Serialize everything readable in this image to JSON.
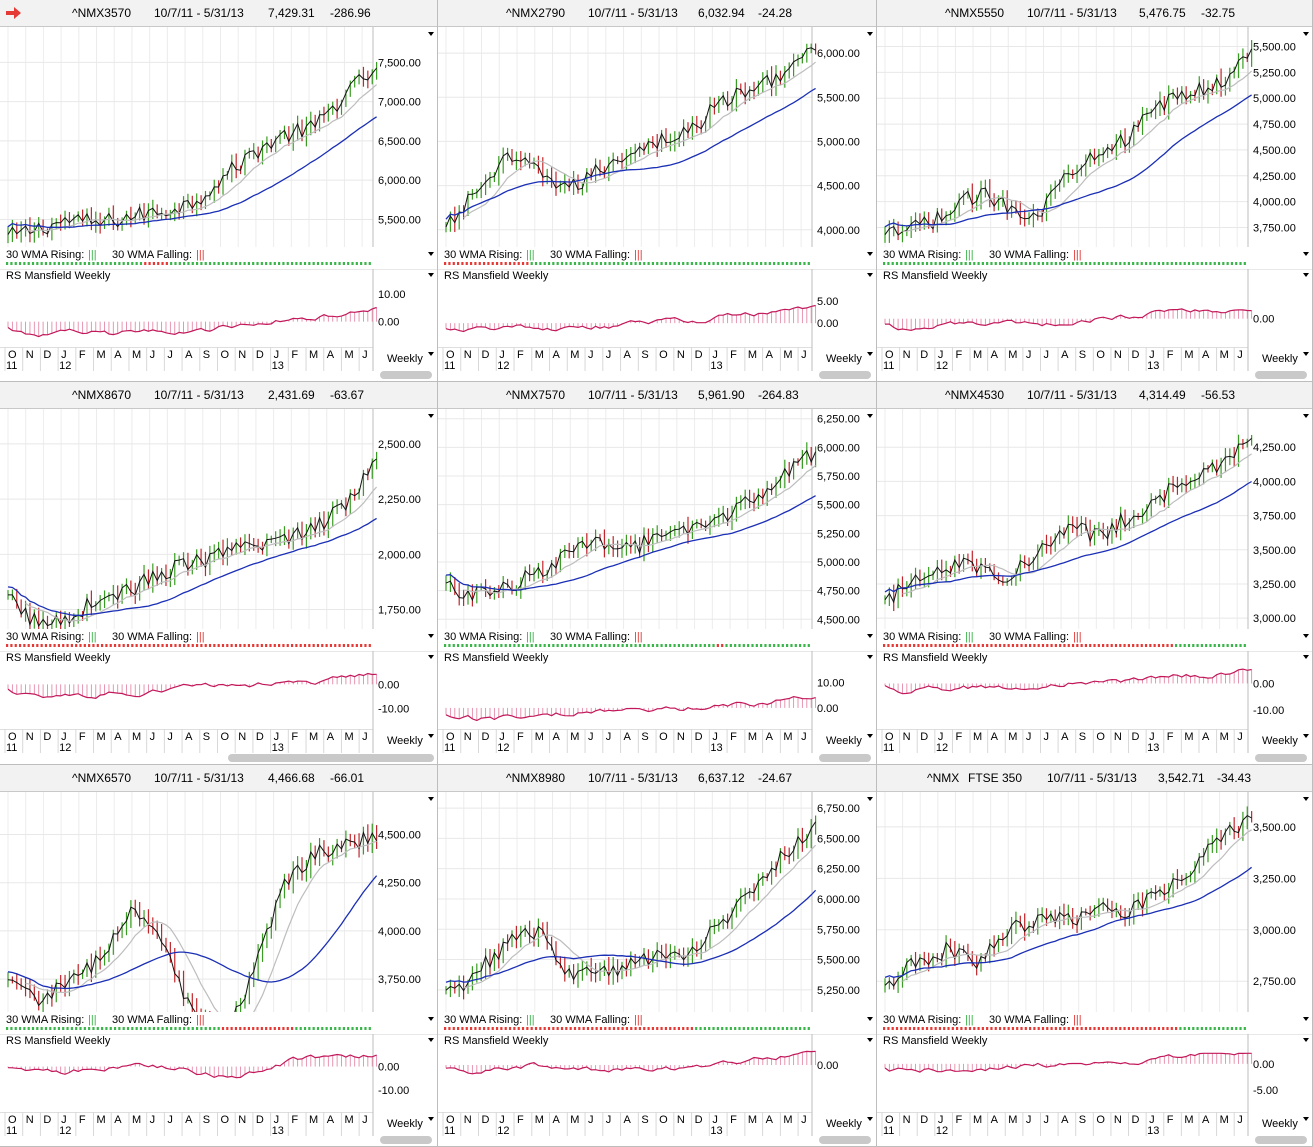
{
  "colors": {
    "up": "#3a9d23",
    "down": "#c0262b",
    "line_black": "#111111",
    "ma_gray": "#bdbdbd",
    "ma_blue": "#1a2fb5",
    "rs": "#c2185b",
    "rising": "#3ab54a",
    "falling": "#e53935",
    "arrow": "#e53935"
  },
  "labels": {
    "wma_rising": "30 WMA Rising:",
    "wma_falling": "30 WMA Falling:",
    "rs": "RS Mansfield Weekly",
    "weekly": "Weekly",
    "rising_mark": "|||",
    "falling_mark": "|||"
  },
  "months": [
    "O",
    "N",
    "D",
    "J",
    "F",
    "M",
    "A",
    "M",
    "J",
    "J",
    "A",
    "S",
    "O",
    "N",
    "D",
    "J",
    "F",
    "M",
    "A",
    "M",
    "J"
  ],
  "years": [
    "11",
    "12",
    "13"
  ],
  "icons": {
    "alert": "red-arrow-icon"
  },
  "panels": [
    {
      "symbol": "^NMX3570",
      "period": "10/7/11 - 5/31/13",
      "last": "7,429.31",
      "change": "-286.96",
      "price_ticks": [
        "7,500.00",
        "7,000.00",
        "6,500.00",
        "6,000.00",
        "5,500.00"
      ],
      "price_range": [
        5200,
        7900
      ],
      "rs_ticks": [
        "10.00",
        "0.00"
      ],
      "rs_range": [
        -7,
        14
      ],
      "start": 5280,
      "end": 7429,
      "wma": [
        1,
        1,
        1,
        1,
        1,
        1,
        1,
        1,
        1,
        1,
        1,
        1,
        1,
        1,
        1,
        1,
        1,
        1,
        1,
        1,
        1,
        1,
        1,
        1,
        1,
        1,
        1,
        1,
        1,
        1,
        1,
        1,
        0,
        0,
        0,
        0,
        0,
        0,
        1,
        1,
        1,
        1,
        1,
        1,
        1,
        1,
        1,
        1,
        1,
        1,
        1,
        1,
        1,
        1,
        1,
        1,
        1,
        1,
        1,
        1,
        1,
        1,
        1,
        1,
        1,
        1,
        1,
        1,
        1,
        1,
        1,
        1,
        1,
        1,
        1,
        1,
        1,
        1,
        1,
        1,
        1,
        1,
        1,
        1,
        1
      ]
    },
    {
      "symbol": "^NMX2790",
      "period": "10/7/11 - 5/31/13",
      "last": "6,032.94",
      "change": "-24.28",
      "price_ticks": [
        "6,000.00",
        "5,500.00",
        "5,000.00",
        "4,500.00",
        "4,000.00"
      ],
      "price_range": [
        3850,
        6250
      ],
      "rs_ticks": [
        "5.00",
        "0.00"
      ],
      "rs_range": [
        -4,
        9
      ],
      "start": 4000,
      "end": 6033,
      "wma": [
        0,
        0,
        0,
        0,
        0,
        0,
        0,
        0,
        0,
        0,
        0,
        0,
        0,
        0,
        0,
        0,
        0,
        0,
        0,
        0,
        1,
        1,
        1,
        1,
        1,
        1,
        1,
        1,
        1,
        1,
        1,
        1,
        1,
        1,
        1,
        1,
        1,
        1,
        1,
        1,
        1,
        1,
        1,
        1,
        1,
        1,
        1,
        1,
        1,
        1,
        1,
        1,
        1,
        1,
        1,
        1,
        1,
        1,
        1,
        1,
        1,
        1,
        1,
        1,
        1,
        1,
        1,
        1,
        1,
        1,
        1,
        1,
        1,
        1,
        1,
        1,
        1,
        1,
        1,
        1,
        1,
        1,
        1,
        1,
        1
      ]
    },
    {
      "symbol": "^NMX5550",
      "period": "10/7/11 - 5/31/13",
      "last": "5,476.75",
      "change": "-32.75",
      "price_ticks": [
        "5,500.00",
        "5,250.00",
        "5,000.00",
        "4,750.00",
        "4,500.00",
        "4,250.00",
        "4,000.00",
        "3,750.00"
      ],
      "price_range": [
        3600,
        5650
      ],
      "rs_ticks": [
        "0.00"
      ],
      "rs_range": [
        -5,
        8
      ],
      "start": 3650,
      "end": 5477,
      "wma": [
        1,
        1,
        1,
        1,
        1,
        1,
        1,
        1,
        1,
        1,
        1,
        1,
        1,
        1,
        1,
        1,
        1,
        1,
        1,
        1,
        1,
        1,
        1,
        1,
        1,
        1,
        1,
        1,
        1,
        1,
        1,
        1,
        1,
        1,
        1,
        1,
        1,
        1,
        1,
        1,
        1,
        1,
        1,
        1,
        1,
        1,
        1,
        1,
        1,
        1,
        1,
        1,
        1,
        1,
        1,
        1,
        1,
        1,
        1,
        1,
        1,
        1,
        1,
        1,
        1,
        1,
        1,
        1,
        1,
        1,
        1,
        1,
        1,
        1,
        1,
        1,
        1,
        1,
        1,
        1,
        1,
        1,
        1,
        1,
        1
      ]
    },
    {
      "symbol": "^NMX8670",
      "period": "10/7/11 - 5/31/13",
      "last": "2,431.69",
      "change": "-63.67",
      "price_ticks": [
        "2,500.00",
        "2,250.00",
        "2,000.00",
        "1,750.00"
      ],
      "price_range": [
        1680,
        2640
      ],
      "rs_ticks": [
        "0.00",
        "-10.00"
      ],
      "rs_range": [
        -16,
        8
      ],
      "start": 1800,
      "end": 2432,
      "wma": [
        0,
        0,
        0,
        0,
        0,
        0,
        0,
        0,
        0,
        0,
        0,
        0,
        0,
        0,
        0,
        0,
        0,
        0,
        0,
        0,
        0,
        0,
        0,
        0,
        0,
        0,
        0,
        0,
        0,
        0,
        0,
        0,
        0,
        0,
        0,
        0,
        0,
        0,
        0,
        0,
        0,
        0,
        0,
        0,
        0,
        0,
        0,
        0,
        0,
        0,
        0,
        0,
        0,
        0,
        0,
        0,
        0,
        0,
        0,
        0,
        0,
        0,
        0,
        0,
        0,
        0,
        0,
        0,
        0,
        0,
        0,
        0,
        0,
        0,
        0,
        0,
        0,
        0,
        0,
        0,
        0,
        0,
        0,
        0,
        0
      ]
    },
    {
      "symbol": "^NMX7570",
      "period": "10/7/11 - 5/31/13",
      "last": "5,961.90",
      "change": "-264.83",
      "price_ticks": [
        "6,250.00",
        "6,000.00",
        "5,750.00",
        "5,500.00",
        "5,250.00",
        "5,000.00",
        "4,750.00",
        "4,500.00"
      ],
      "price_range": [
        4450,
        6300
      ],
      "rs_ticks": [
        "10.00",
        "0.00"
      ],
      "rs_range": [
        -6,
        17
      ],
      "start": 4780,
      "end": 5962,
      "wma": [
        1,
        1,
        1,
        1,
        1,
        1,
        1,
        1,
        1,
        1,
        1,
        1,
        1,
        1,
        1,
        1,
        1,
        1,
        1,
        1,
        1,
        1,
        1,
        1,
        1,
        1,
        1,
        1,
        1,
        1,
        1,
        1,
        1,
        1,
        1,
        1,
        1,
        1,
        1,
        1,
        1,
        1,
        1,
        1,
        1,
        1,
        1,
        1,
        1,
        1,
        1,
        1,
        1,
        1,
        1,
        1,
        1,
        1,
        1,
        1,
        1,
        1,
        1,
        0,
        0,
        1,
        1,
        1,
        1,
        1,
        1,
        1,
        1,
        1,
        1,
        1,
        1,
        1,
        1,
        1,
        1,
        1,
        1,
        1,
        1
      ]
    },
    {
      "symbol": "^NMX4530",
      "period": "10/7/11 - 5/31/13",
      "last": "4,314.49",
      "change": "-56.53",
      "price_ticks": [
        "4,250.00",
        "4,000.00",
        "3,750.00",
        "3,500.00",
        "3,250.00",
        "3,000.00"
      ],
      "price_range": [
        2950,
        4500
      ],
      "rs_ticks": [
        "0.00",
        "-10.00"
      ],
      "rs_range": [
        -15,
        7
      ],
      "start": 3100,
      "end": 4314,
      "wma": [
        0,
        0,
        0,
        0,
        0,
        0,
        0,
        0,
        0,
        0,
        0,
        0,
        0,
        0,
        0,
        0,
        0,
        0,
        0,
        0,
        0,
        0,
        0,
        0,
        0,
        0,
        0,
        0,
        0,
        0,
        0,
        0,
        0,
        0,
        0,
        0,
        0,
        0,
        0,
        0,
        0,
        0,
        0,
        0,
        0,
        0,
        0,
        0,
        0,
        0,
        0,
        0,
        0,
        0,
        0,
        0,
        0,
        0,
        0,
        0,
        0,
        0,
        0,
        0,
        0,
        0,
        0,
        0,
        1,
        1,
        1,
        1,
        1,
        1,
        1,
        1,
        1,
        1,
        1,
        1,
        1,
        1,
        1,
        1,
        1
      ]
    },
    {
      "symbol": "^NMX6570",
      "period": "10/7/11 - 5/31/13",
      "last": "4,466.68",
      "change": "-66.01",
      "price_ticks": [
        "4,500.00",
        "4,250.00",
        "4,000.00",
        "3,750.00"
      ],
      "price_range": [
        3600,
        4700
      ],
      "rs_ticks": [
        "0.00",
        "-10.00"
      ],
      "rs_range": [
        -17,
        8
      ],
      "start": 3720,
      "end": 4467,
      "wma": [
        1,
        1,
        1,
        1,
        1,
        1,
        1,
        1,
        1,
        1,
        1,
        1,
        1,
        1,
        1,
        1,
        1,
        1,
        1,
        1,
        1,
        1,
        1,
        1,
        1,
        1,
        1,
        1,
        1,
        1,
        1,
        1,
        1,
        1,
        1,
        1,
        1,
        1,
        1,
        1,
        1,
        1,
        1,
        1,
        1,
        1,
        1,
        1,
        1,
        1,
        0,
        0,
        0,
        0,
        0,
        0,
        0,
        0,
        0,
        0,
        0,
        0,
        0,
        0,
        0,
        0,
        0,
        1,
        1,
        1,
        1,
        1,
        1,
        1,
        1,
        1,
        1,
        1,
        1,
        1,
        1,
        1,
        1,
        1,
        1
      ]
    },
    {
      "symbol": "^NMX8980",
      "period": "10/7/11 - 5/31/13",
      "last": "6,637.12",
      "change": "-24.67",
      "price_ticks": [
        "6,750.00",
        "6,500.00",
        "6,250.00",
        "6,000.00",
        "5,750.00",
        "5,500.00",
        "5,250.00"
      ],
      "price_range": [
        5100,
        6850
      ],
      "rs_ticks": [
        "0.00"
      ],
      "rs_range": [
        -12,
        5
      ],
      "start": 5200,
      "end": 6637,
      "wma": [
        0,
        0,
        0,
        0,
        0,
        0,
        0,
        0,
        0,
        0,
        0,
        0,
        0,
        0,
        0,
        0,
        0,
        0,
        0,
        0,
        0,
        0,
        0,
        0,
        0,
        0,
        0,
        0,
        0,
        0,
        0,
        0,
        0,
        0,
        0,
        0,
        0,
        0,
        0,
        0,
        0,
        0,
        0,
        0,
        0,
        0,
        0,
        0,
        0,
        0,
        0,
        0,
        0,
        0,
        0,
        0,
        0,
        0,
        1,
        1,
        1,
        1,
        1,
        1,
        1,
        1,
        1,
        1,
        1,
        1,
        1,
        1,
        1,
        1,
        1,
        1,
        1,
        1,
        1,
        1,
        1,
        1,
        1,
        1,
        1
      ]
    },
    {
      "symbol": "^NMX",
      "subname": "FTSE 350",
      "period": "10/7/11 - 5/31/13",
      "last": "3,542.71",
      "change": "-34.43",
      "price_ticks": [
        "3,500.00",
        "3,250.00",
        "3,000.00",
        "2,750.00"
      ],
      "price_range": [
        2620,
        3650
      ],
      "rs_ticks": [
        "0.00",
        "-5.00"
      ],
      "rs_range": [
        -8,
        3
      ],
      "start": 2700,
      "end": 3543,
      "wma": [
        0,
        0,
        0,
        0,
        0,
        0,
        0,
        0,
        0,
        0,
        0,
        0,
        0,
        0,
        0,
        0,
        0,
        0,
        0,
        0,
        0,
        0,
        0,
        0,
        0,
        0,
        0,
        0,
        0,
        0,
        0,
        0,
        0,
        0,
        0,
        0,
        0,
        0,
        0,
        0,
        0,
        0,
        0,
        0,
        0,
        0,
        0,
        0,
        0,
        0,
        0,
        0,
        0,
        0,
        0,
        0,
        0,
        0,
        0,
        0,
        0,
        0,
        0,
        0,
        0,
        0,
        0,
        0,
        0,
        1,
        1,
        1,
        1,
        1,
        1,
        1,
        1,
        1,
        1,
        1,
        1,
        1,
        1,
        1,
        1
      ]
    }
  ]
}
